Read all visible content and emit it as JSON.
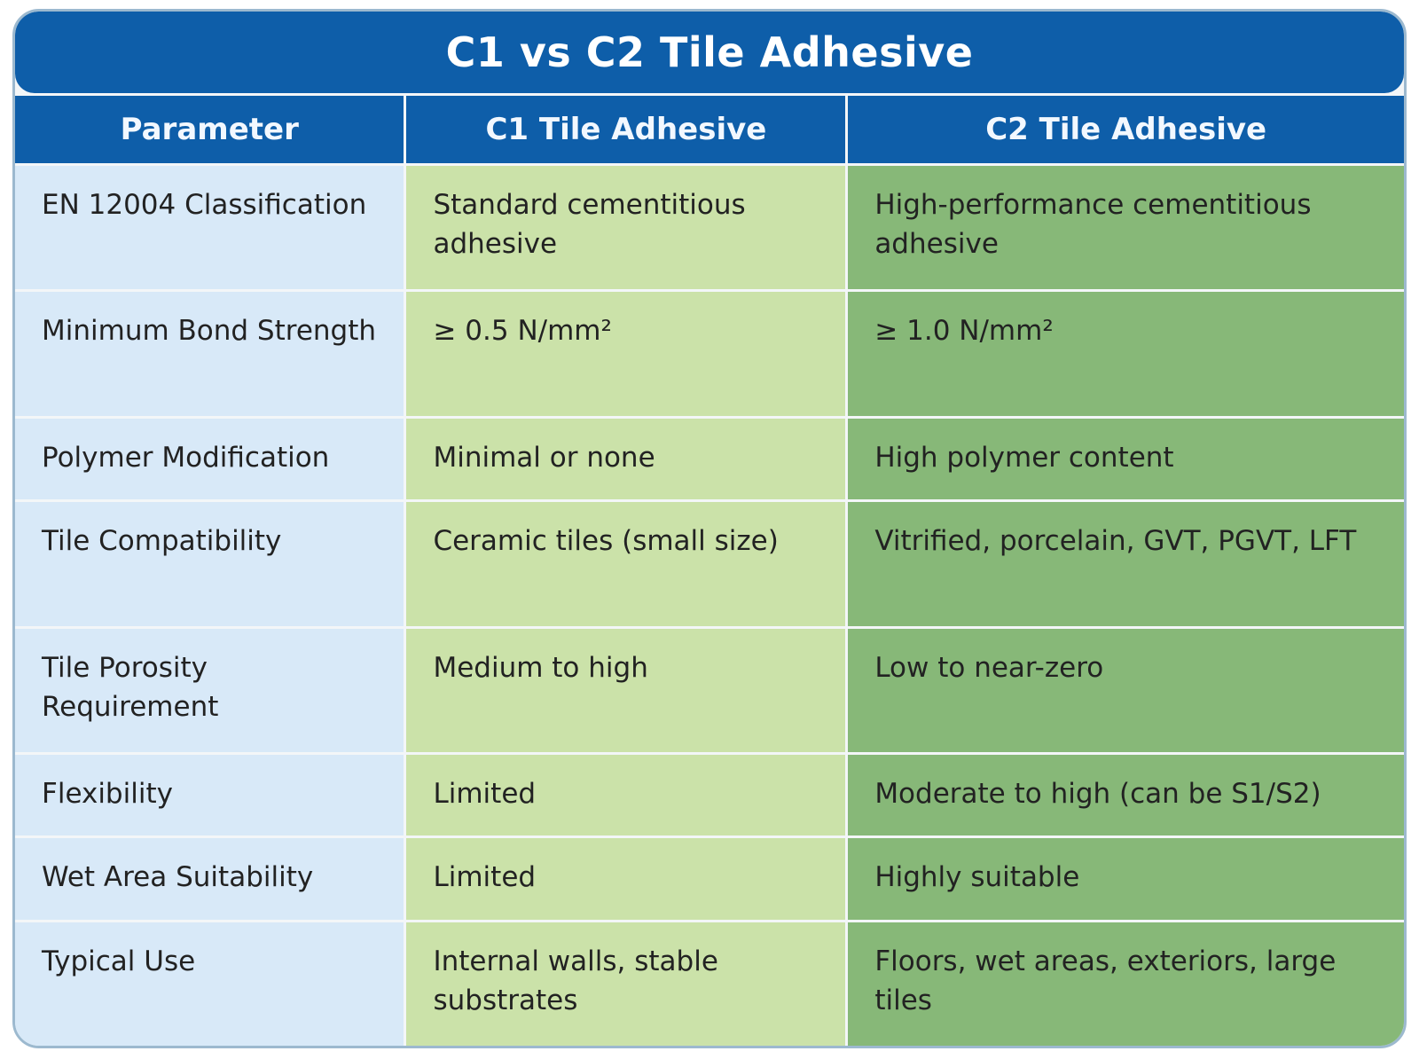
{
  "palette": {
    "blue": "#0e5ea9",
    "param-bg": "#d8e9f8",
    "c1-bg": "#cbe2a9",
    "c2-bg": "#87b878",
    "text-dark": "#222222",
    "header-text": "#f2f8ff",
    "card-border": "#9cb9cf",
    "seam": "#f3f6f8"
  },
  "title": "C1 vs C2 Tile Adhesive",
  "table": {
    "headers": {
      "parameter": "Parameter",
      "c1": "C1 Tile Adhesive",
      "c2": "C2 Tile Adhesive"
    },
    "rows": [
      {
        "parameter": "EN 12004 Classification",
        "c1": "Standard cementitious adhesive",
        "c2": "High-performance cementitious adhesive"
      },
      {
        "parameter": "Minimum Bond Strength",
        "c1": "≥ 0.5 N/mm²",
        "c2": "≥ 1.0 N/mm²"
      },
      {
        "parameter": "Polymer Modification",
        "c1": "Minimal or none",
        "c2": "High polymer content"
      },
      {
        "parameter": "Tile Compatibility",
        "c1": "Ceramic tiles (small size)",
        "c2": "Vitrified, porcelain, GVT, PGVT, LFT"
      },
      {
        "parameter": "Tile Porosity Requirement",
        "c1": "Medium to high",
        "c2": "Low to near-zero"
      },
      {
        "parameter": "Flexibility",
        "c1": "Limited",
        "c2": "Moderate to high (can be S1/S2)"
      },
      {
        "parameter": "Wet Area Suitability",
        "c1": "Limited",
        "c2": "Highly suitable"
      },
      {
        "parameter": "Typical Use",
        "c1": "Internal walls, stable substrates",
        "c2": "Floors, wet areas, exteriors, large tiles"
      }
    ]
  },
  "chart_data": {
    "type": "table",
    "title": "C1 vs C2 Tile Adhesive",
    "columns": [
      "Parameter",
      "C1 Tile Adhesive",
      "C2 Tile Adhesive"
    ],
    "rows": [
      [
        "EN 12004 Classification",
        "Standard cementitious adhesive",
        "High-performance cementitious adhesive"
      ],
      [
        "Minimum Bond Strength",
        "≥ 0.5 N/mm²",
        "≥ 1.0 N/mm²"
      ],
      [
        "Polymer Modification",
        "Minimal or none",
        "High polymer content"
      ],
      [
        "Tile Compatibility",
        "Ceramic tiles (small size)",
        "Vitrified, porcelain, GVT, PGVT, LFT"
      ],
      [
        "Tile Porosity Requirement",
        "Medium to high",
        "Low to near-zero"
      ],
      [
        "Flexibility",
        "Limited",
        "Moderate to high (can be S1/S2)"
      ],
      [
        "Wet Area Suitability",
        "Limited",
        "Highly suitable"
      ],
      [
        "Typical Use",
        "Internal walls, stable substrates",
        "Floors, wet areas, exteriors, large tiles"
      ]
    ]
  }
}
